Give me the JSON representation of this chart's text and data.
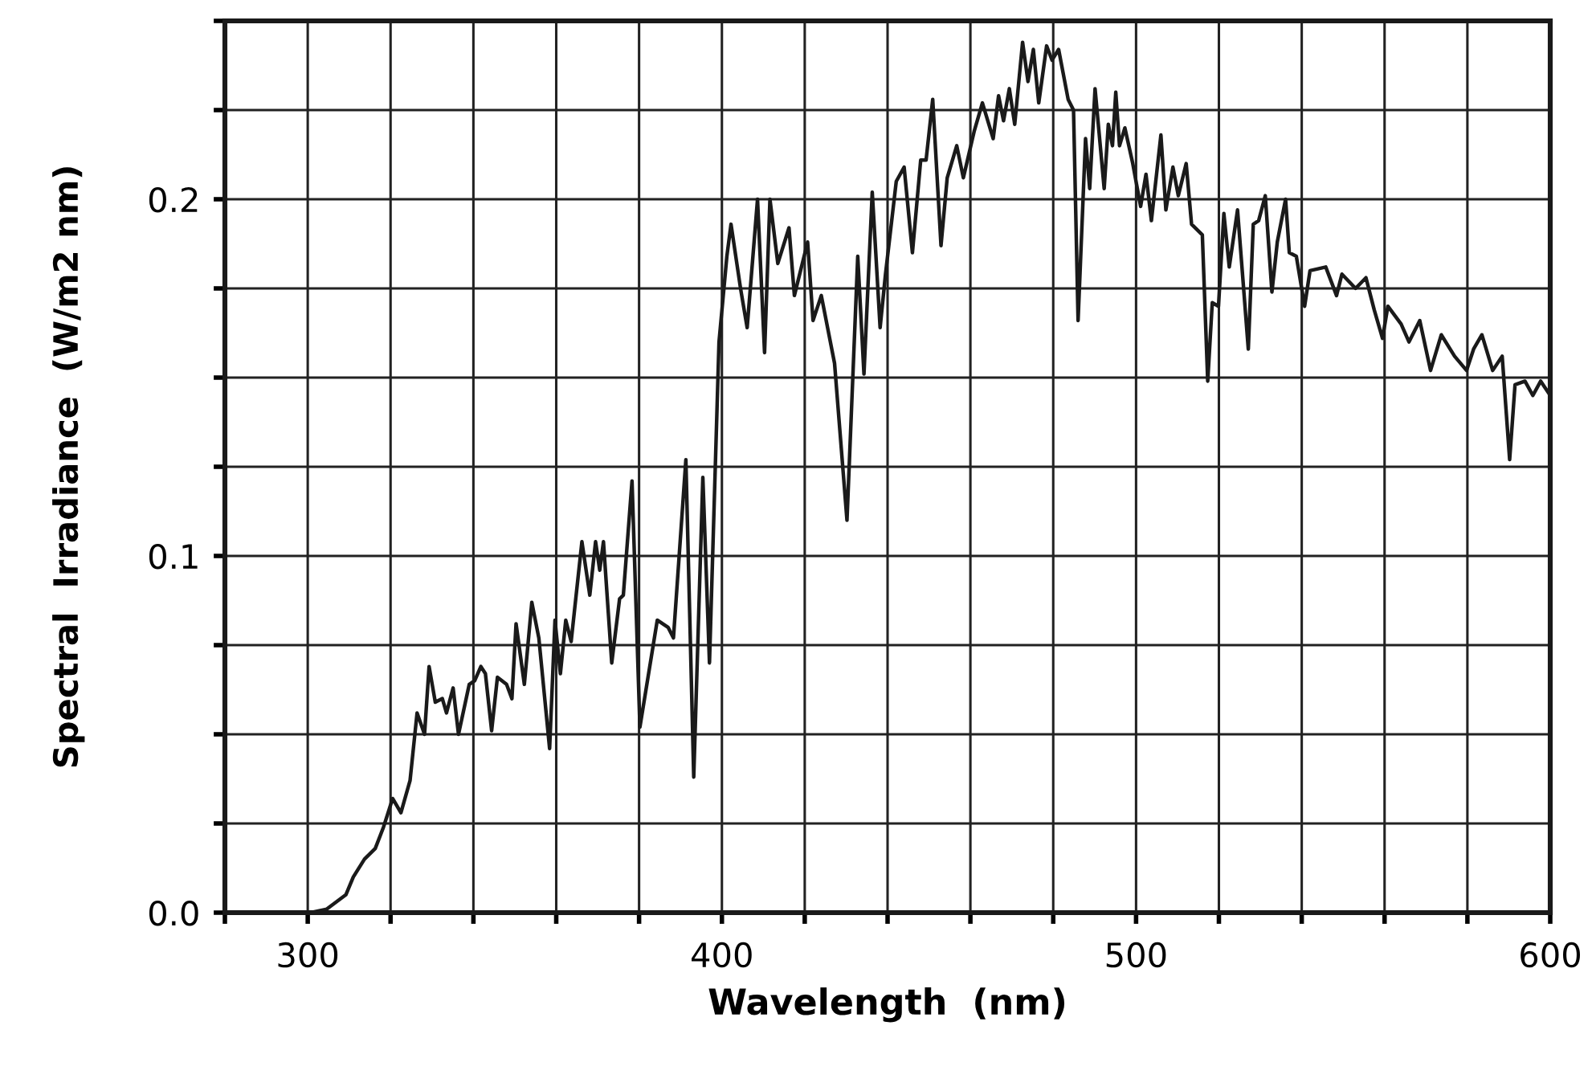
{
  "chart_data": {
    "type": "line",
    "xlabel": "Wavelength  (nm)",
    "ylabel": "Spectral  Irradiance  (W/m2 nm)",
    "series": [
      {
        "color": "#1a1a1a",
        "x": [
          300.7,
          304.6,
          309.2,
          311,
          313.7,
          316.3,
          318.3,
          320.5,
          322.5,
          324.7,
          326.4,
          328.2,
          329.3,
          330.8,
          332.5,
          333.5,
          335.1,
          336.4,
          339,
          340.3,
          341.8,
          342.9,
          344.4,
          345.8,
          348,
          349.3,
          350.3,
          352.3,
          354.1,
          355.8,
          358.4,
          359.7,
          361,
          362.3,
          363.6,
          366.2,
          368.1,
          369.5,
          370.5,
          371.4,
          373.4,
          375.3,
          376.2,
          378.3,
          380.2,
          384.4,
          387,
          388.3,
          391.3,
          393.2,
          395.4,
          397,
          399.3,
          401.2,
          402.2,
          404.5,
          406.1,
          408.6,
          410.3,
          411.6,
          413.5,
          416.2,
          417.5,
          420.7,
          422,
          424,
          427.2,
          430.2,
          432.8,
          434.3,
          436.3,
          438.2,
          439.5,
          442.1,
          444,
          446,
          448,
          449.3,
          450.9,
          452.9,
          454.4,
          456.7,
          458.3,
          460.9,
          462.9,
          465.5,
          466.8,
          468,
          469.4,
          470.7,
          472.6,
          473.9,
          475.2,
          476.5,
          478.4,
          479.7,
          481.3,
          483.6,
          484.9,
          486,
          487.8,
          488.8,
          490.1,
          492.3,
          493.3,
          494.3,
          495.1,
          496,
          497.3,
          499.2,
          501.1,
          502.4,
          503.7,
          506,
          507.2,
          508.9,
          510.2,
          512.1,
          513.4,
          516,
          517.3,
          518.4,
          519.9,
          521.2,
          522.5,
          524.5,
          527.1,
          528.3,
          529.6,
          531.2,
          532.8,
          534.1,
          536.1,
          537,
          538.7,
          540.7,
          542,
          545.8,
          548.4,
          549.7,
          553,
          555.5,
          557.5,
          559.5,
          560.8,
          564,
          565.9,
          568.5,
          571.1,
          573.7,
          576.9,
          579.8,
          581.5,
          583.5,
          586.1,
          588.4,
          590.2,
          591.5,
          593.9,
          595.8,
          597.7,
          600
        ],
        "values": [
          0,
          0.001,
          0.005,
          0.01,
          0.015,
          0.018,
          0.024,
          0.032,
          0.028,
          0.037,
          0.056,
          0.05,
          0.069,
          0.059,
          0.06,
          0.056,
          0.063,
          0.05,
          0.064,
          0.065,
          0.069,
          0.067,
          0.051,
          0.066,
          0.064,
          0.06,
          0.081,
          0.064,
          0.087,
          0.077,
          0.046,
          0.082,
          0.067,
          0.082,
          0.076,
          0.104,
          0.089,
          0.104,
          0.096,
          0.104,
          0.07,
          0.088,
          0.089,
          0.121,
          0.052,
          0.082,
          0.08,
          0.077,
          0.127,
          0.038,
          0.122,
          0.07,
          0.16,
          0.184,
          0.193,
          0.175,
          0.164,
          0.2,
          0.157,
          0.2,
          0.182,
          0.192,
          0.173,
          0.188,
          0.166,
          0.173,
          0.154,
          0.11,
          0.184,
          0.151,
          0.202,
          0.164,
          0.179,
          0.205,
          0.209,
          0.185,
          0.211,
          0.211,
          0.228,
          0.187,
          0.206,
          0.215,
          0.206,
          0.219,
          0.227,
          0.217,
          0.229,
          0.222,
          0.231,
          0.221,
          0.244,
          0.233,
          0.242,
          0.227,
          0.243,
          0.239,
          0.242,
          0.228,
          0.225,
          0.166,
          0.217,
          0.203,
          0.231,
          0.203,
          0.221,
          0.215,
          0.23,
          0.215,
          0.22,
          0.21,
          0.198,
          0.207,
          0.194,
          0.218,
          0.197,
          0.209,
          0.201,
          0.21,
          0.193,
          0.19,
          0.149,
          0.171,
          0.17,
          0.196,
          0.181,
          0.197,
          0.158,
          0.193,
          0.194,
          0.201,
          0.174,
          0.188,
          0.2,
          0.185,
          0.184,
          0.17,
          0.18,
          0.181,
          0.173,
          0.179,
          0.175,
          0.178,
          0.169,
          0.161,
          0.17,
          0.165,
          0.16,
          0.166,
          0.152,
          0.162,
          0.156,
          0.152,
          0.158,
          0.162,
          0.152,
          0.156,
          0.127,
          0.148,
          0.149,
          0.145,
          0.149,
          0.145
        ]
      }
    ],
    "xlim": [
      280,
      600
    ],
    "xticks": [
      {
        "value": 280,
        "label": null
      },
      300,
      {
        "value": 320,
        "label": null
      },
      {
        "value": 340,
        "label": null
      },
      {
        "value": 360,
        "label": null
      },
      {
        "value": 380,
        "label": null
      },
      400,
      {
        "value": 420,
        "label": null
      },
      {
        "value": 440,
        "label": null
      },
      {
        "value": 460,
        "label": null
      },
      {
        "value": 480,
        "label": null
      },
      500,
      {
        "value": 520,
        "label": null
      },
      {
        "value": 540,
        "label": null
      },
      {
        "value": 560,
        "label": null
      },
      {
        "value": 580,
        "label": null
      },
      600
    ],
    "ylim": [
      0,
      0.25
    ],
    "yticks": [
      {
        "value": 0,
        "label": "0.0"
      },
      {
        "value": 0.025,
        "label": null
      },
      {
        "value": 0.05,
        "label": null
      },
      {
        "value": 0.075,
        "label": null
      },
      0.1,
      {
        "value": 0.125,
        "label": null
      },
      {
        "value": 0.15,
        "label": null
      },
      {
        "value": 0.175,
        "label": null
      },
      0.2,
      {
        "value": 0.225,
        "label": null
      },
      {
        "value": 0.25,
        "label": null
      }
    ],
    "grid": true,
    "marker": "none",
    "line_style": "solid"
  }
}
